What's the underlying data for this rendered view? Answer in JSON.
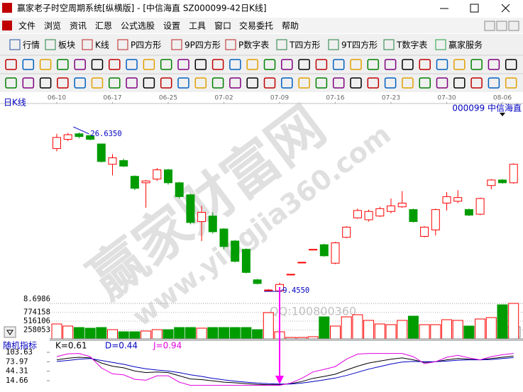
{
  "window": {
    "title": "赢家老子时空周期系统[纵横版] - [中信海直  SZ000099-42日K线]"
  },
  "menu": [
    "文件",
    "浏览",
    "资讯",
    "汇恩",
    "公式选股",
    "设置",
    "工具",
    "窗口",
    "交易委托",
    "帮助"
  ],
  "toolbar": [
    "行情",
    "板块",
    "K线",
    "P四方形",
    "9P四方形",
    "P数字表",
    "T四方形",
    "9T四方形",
    "T数字表",
    "赢家服务"
  ],
  "watermark": [
    "赢家财富网",
    "www.yingjia360.com",
    "QQ:100800360"
  ],
  "chart_data": [
    {
      "type": "candlestick",
      "title": "日K线",
      "subtitle": "000099  中信海直",
      "categories": [
        "06-10",
        null,
        null,
        null,
        null,
        "06-17",
        null,
        null,
        null,
        null,
        "06-25",
        null,
        null,
        null,
        null,
        "07-02",
        null,
        null,
        null,
        null,
        "07-09",
        null,
        null,
        null,
        null,
        "07-16",
        null,
        null,
        null,
        null,
        "07-23",
        null,
        null,
        null,
        null,
        "07-30",
        null,
        null,
        null,
        null,
        "08-06",
        null
      ],
      "open": [
        24.9,
        25.9,
        26.5,
        26.3,
        25.4,
        23.2,
        23.6,
        21.9,
        21.2,
        21.6,
        22.6,
        21.2,
        19.9,
        17.0,
        17.6,
        16.2,
        14.9,
        14.0,
        10.7,
        9.6,
        9.5,
        11.3,
        12.6,
        14.0,
        14.5,
        12.5,
        15.3,
        17.4,
        17.2,
        17.6,
        18.1,
        18.6,
        18.3,
        15.4,
        16.1,
        19.0,
        19.2,
        18.3,
        17.8,
        20.9,
        21.5,
        21.2
      ],
      "high": [
        26.5,
        26.6,
        26.635,
        26.4,
        25.4,
        24.3,
        23.8,
        22.0,
        21.5,
        22.8,
        22.7,
        21.3,
        20.0,
        18.7,
        18.0,
        16.3,
        15.0,
        14.1,
        10.8,
        9.7,
        10.4,
        11.3,
        12.6,
        14.0,
        14.6,
        14.8,
        16.5,
        18.4,
        18.3,
        18.6,
        19.5,
        20.3,
        18.4,
        16.5,
        18.4,
        20.2,
        20.4,
        18.4,
        19.6,
        21.6,
        21.6,
        23.3
      ],
      "low": [
        24.6,
        25.7,
        26.0,
        25.8,
        23.4,
        22.0,
        22.9,
        20.4,
        18.5,
        21.4,
        21.0,
        19.5,
        16.7,
        14.9,
        15.7,
        14.0,
        12.6,
        11.4,
        10.2,
        9.455,
        9.5,
        11.3,
        12.6,
        14.0,
        13.2,
        12.4,
        15.2,
        17.3,
        17.0,
        17.5,
        17.9,
        18.5,
        16.9,
        15.3,
        15.5,
        18.2,
        19.0,
        17.6,
        17.7,
        20.5,
        21.1,
        21.1
      ],
      "close": [
        26.1,
        26.4,
        26.2,
        25.9,
        23.5,
        23.9,
        23.0,
        20.6,
        21.4,
        22.6,
        21.2,
        19.7,
        16.9,
        18.0,
        15.9,
        14.3,
        12.7,
        11.5,
        10.3,
        9.6,
        10.2,
        11.3,
        12.6,
        14.0,
        13.3,
        14.7,
        16.4,
        18.2,
        18.1,
        18.4,
        18.7,
        19.0,
        17.0,
        16.4,
        18.3,
        19.7,
        19.6,
        17.7,
        19.5,
        21.5,
        21.2,
        23.2
      ],
      "ylim": [
        8.38,
        29.47
      ],
      "up_color": "#ff0000",
      "down_color": "#009c00",
      "annotations": [
        {
          "value": 26.635,
          "label": "26.6350"
        },
        {
          "value": 9.455,
          "label": "9.4550"
        }
      ]
    },
    {
      "type": "bar",
      "top_label": "8.6986",
      "values": [
        433000,
        372000,
        330000,
        310000,
        330000,
        268000,
        206000,
        206000,
        227000,
        268000,
        268000,
        330000,
        330000,
        310000,
        330000,
        330000,
        330000,
        330000,
        268000,
        764000,
        206000,
        41000,
        41000,
        62000,
        640000,
        372000,
        640000,
        702000,
        537000,
        433000,
        413000,
        537000,
        661000,
        413000,
        413000,
        557000,
        537000,
        372000,
        578000,
        619000,
        991000,
        1032000
      ],
      "ylim": [
        0,
        1094000
      ],
      "yticks": [
        258053,
        516106,
        774158
      ],
      "grid": true
    },
    {
      "type": "line",
      "title": "随机指标",
      "ylim": [
        -3.13,
        114.75
      ],
      "yticks": [
        103.63,
        73.97,
        44.31,
        14.66
      ],
      "series": [
        {
          "name": "K=0.61",
          "color": "#000000",
          "values": [
            80,
            85,
            88,
            86,
            70,
            60,
            55,
            45,
            40,
            42,
            40,
            30,
            20,
            18,
            14,
            10,
            8,
            5,
            3,
            2,
            2,
            5,
            12,
            22,
            28,
            35,
            48,
            60,
            70,
            76,
            82,
            86,
            80,
            72,
            74,
            80,
            84,
            82,
            80,
            84,
            88,
            92
          ]
        },
        {
          "name": "D=0.44",
          "color": "#0000c0",
          "values": [
            75,
            78,
            82,
            84,
            78,
            72,
            66,
            58,
            52,
            48,
            45,
            40,
            33,
            28,
            22,
            17,
            13,
            10,
            7,
            5,
            4,
            4,
            7,
            12,
            17,
            23,
            31,
            41,
            51,
            59,
            67,
            73,
            75,
            74,
            74,
            76,
            79,
            80,
            80,
            81,
            84,
            87
          ]
        },
        {
          "name": "J=0.94",
          "color": "#e000e0",
          "values": [
            90,
            99,
            100,
            90,
            55,
            36,
            33,
            19,
            16,
            30,
            30,
            10,
            0,
            0,
            0,
            0,
            0,
            0,
            0,
            0,
            0,
            7,
            22,
            42,
            50,
            59,
            82,
            98,
            100,
            100,
            100,
            100,
            90,
            68,
            74,
            88,
            94,
            86,
            80,
            90,
            96,
            100
          ]
        }
      ]
    }
  ]
}
